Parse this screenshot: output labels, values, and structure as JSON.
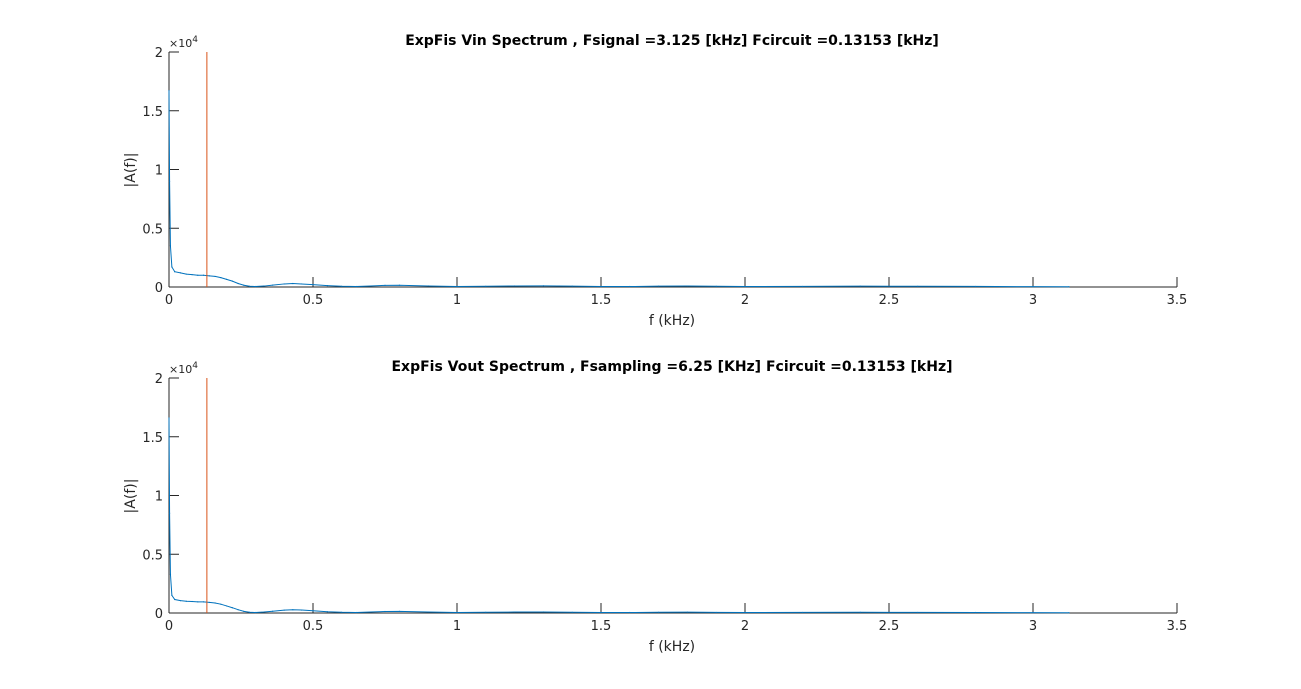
{
  "colors": {
    "spectrum": "#0072BD",
    "marker": "#D95319",
    "axis": "#262626",
    "background": "#ffffff"
  },
  "chart_data": [
    {
      "type": "line",
      "title": "ExpFis Vin Spectrum , Fsignal =3.125 [kHz] Fcircuit =0.13153 [kHz]",
      "xlabel": "f (kHz)",
      "ylabel": "|A(f)|",
      "exponent_label": "×10",
      "exponent_power": "4",
      "xlim": [
        0,
        3.5
      ],
      "ylim": [
        0,
        20000
      ],
      "x_ticks": [
        0,
        0.5,
        1,
        1.5,
        2,
        2.5,
        3,
        3.5
      ],
      "x_tick_labels": [
        "0",
        "0.5",
        "1",
        "1.5",
        "2",
        "2.5",
        "3",
        "3.5"
      ],
      "y_ticks": [
        0,
        5000,
        10000,
        15000,
        20000
      ],
      "y_tick_labels": [
        "0",
        "0.5",
        "1",
        "1.5",
        "2"
      ],
      "grid": false,
      "series": [
        {
          "name": "",
          "x": [
            0,
            0.002,
            0.005,
            0.01,
            0.02,
            0.04,
            0.06,
            0.08,
            0.1,
            0.12,
            0.14,
            0.16,
            0.18,
            0.2,
            0.22,
            0.24,
            0.26,
            0.28,
            0.3,
            0.33,
            0.36,
            0.4,
            0.43,
            0.46,
            0.5,
            0.55,
            0.6,
            0.65,
            0.7,
            0.75,
            0.8,
            0.9,
            1.0,
            1.1,
            1.2,
            1.3,
            1.4,
            1.5,
            1.6,
            1.7,
            1.8,
            1.9,
            2.0,
            2.2,
            2.4,
            2.6,
            2.8,
            3.0,
            3.125
          ],
          "values": [
            16700,
            9000,
            3500,
            1700,
            1300,
            1200,
            1100,
            1050,
            1000,
            1000,
            950,
            900,
            800,
            650,
            500,
            300,
            150,
            60,
            40,
            80,
            160,
            260,
            300,
            260,
            200,
            120,
            60,
            40,
            80,
            140,
            150,
            90,
            40,
            60,
            90,
            100,
            70,
            40,
            40,
            70,
            80,
            60,
            40,
            50,
            70,
            60,
            50,
            30,
            20
          ]
        }
      ],
      "marker": {
        "x": 0.13153,
        "y_range": [
          0,
          20000
        ]
      }
    },
    {
      "type": "line",
      "title": "ExpFis Vout Spectrum , Fsampling =6.25 [KHz]  Fcircuit =0.13153 [kHz]",
      "xlabel": "f (kHz)",
      "ylabel": "|A(f)|",
      "exponent_label": "×10",
      "exponent_power": "4",
      "xlim": [
        0,
        3.5
      ],
      "ylim": [
        0,
        20000
      ],
      "x_ticks": [
        0,
        0.5,
        1,
        1.5,
        2,
        2.5,
        3,
        3.5
      ],
      "x_tick_labels": [
        "0",
        "0.5",
        "1",
        "1.5",
        "2",
        "2.5",
        "3",
        "3.5"
      ],
      "y_ticks": [
        0,
        5000,
        10000,
        15000,
        20000
      ],
      "y_tick_labels": [
        "0",
        "0.5",
        "1",
        "1.5",
        "2"
      ],
      "grid": false,
      "series": [
        {
          "name": "",
          "x": [
            0,
            0.002,
            0.005,
            0.01,
            0.02,
            0.04,
            0.06,
            0.08,
            0.1,
            0.12,
            0.14,
            0.16,
            0.18,
            0.2,
            0.22,
            0.24,
            0.26,
            0.28,
            0.3,
            0.33,
            0.36,
            0.4,
            0.43,
            0.46,
            0.5,
            0.55,
            0.6,
            0.65,
            0.7,
            0.75,
            0.8,
            0.9,
            1.0,
            1.1,
            1.2,
            1.3,
            1.4,
            1.5,
            1.6,
            1.7,
            1.8,
            1.9,
            2.0,
            2.2,
            2.4,
            2.6,
            2.8,
            3.0,
            3.125
          ],
          "values": [
            16600,
            8500,
            3300,
            1500,
            1150,
            1050,
            1000,
            980,
            950,
            950,
            900,
            850,
            750,
            600,
            450,
            280,
            140,
            60,
            40,
            80,
            150,
            240,
            280,
            250,
            190,
            110,
            60,
            40,
            80,
            130,
            140,
            80,
            40,
            60,
            80,
            90,
            60,
            40,
            40,
            60,
            70,
            50,
            40,
            50,
            60,
            50,
            40,
            30,
            20
          ]
        }
      ],
      "marker": {
        "x": 0.13153,
        "y_range": [
          0,
          20000
        ]
      }
    }
  ]
}
